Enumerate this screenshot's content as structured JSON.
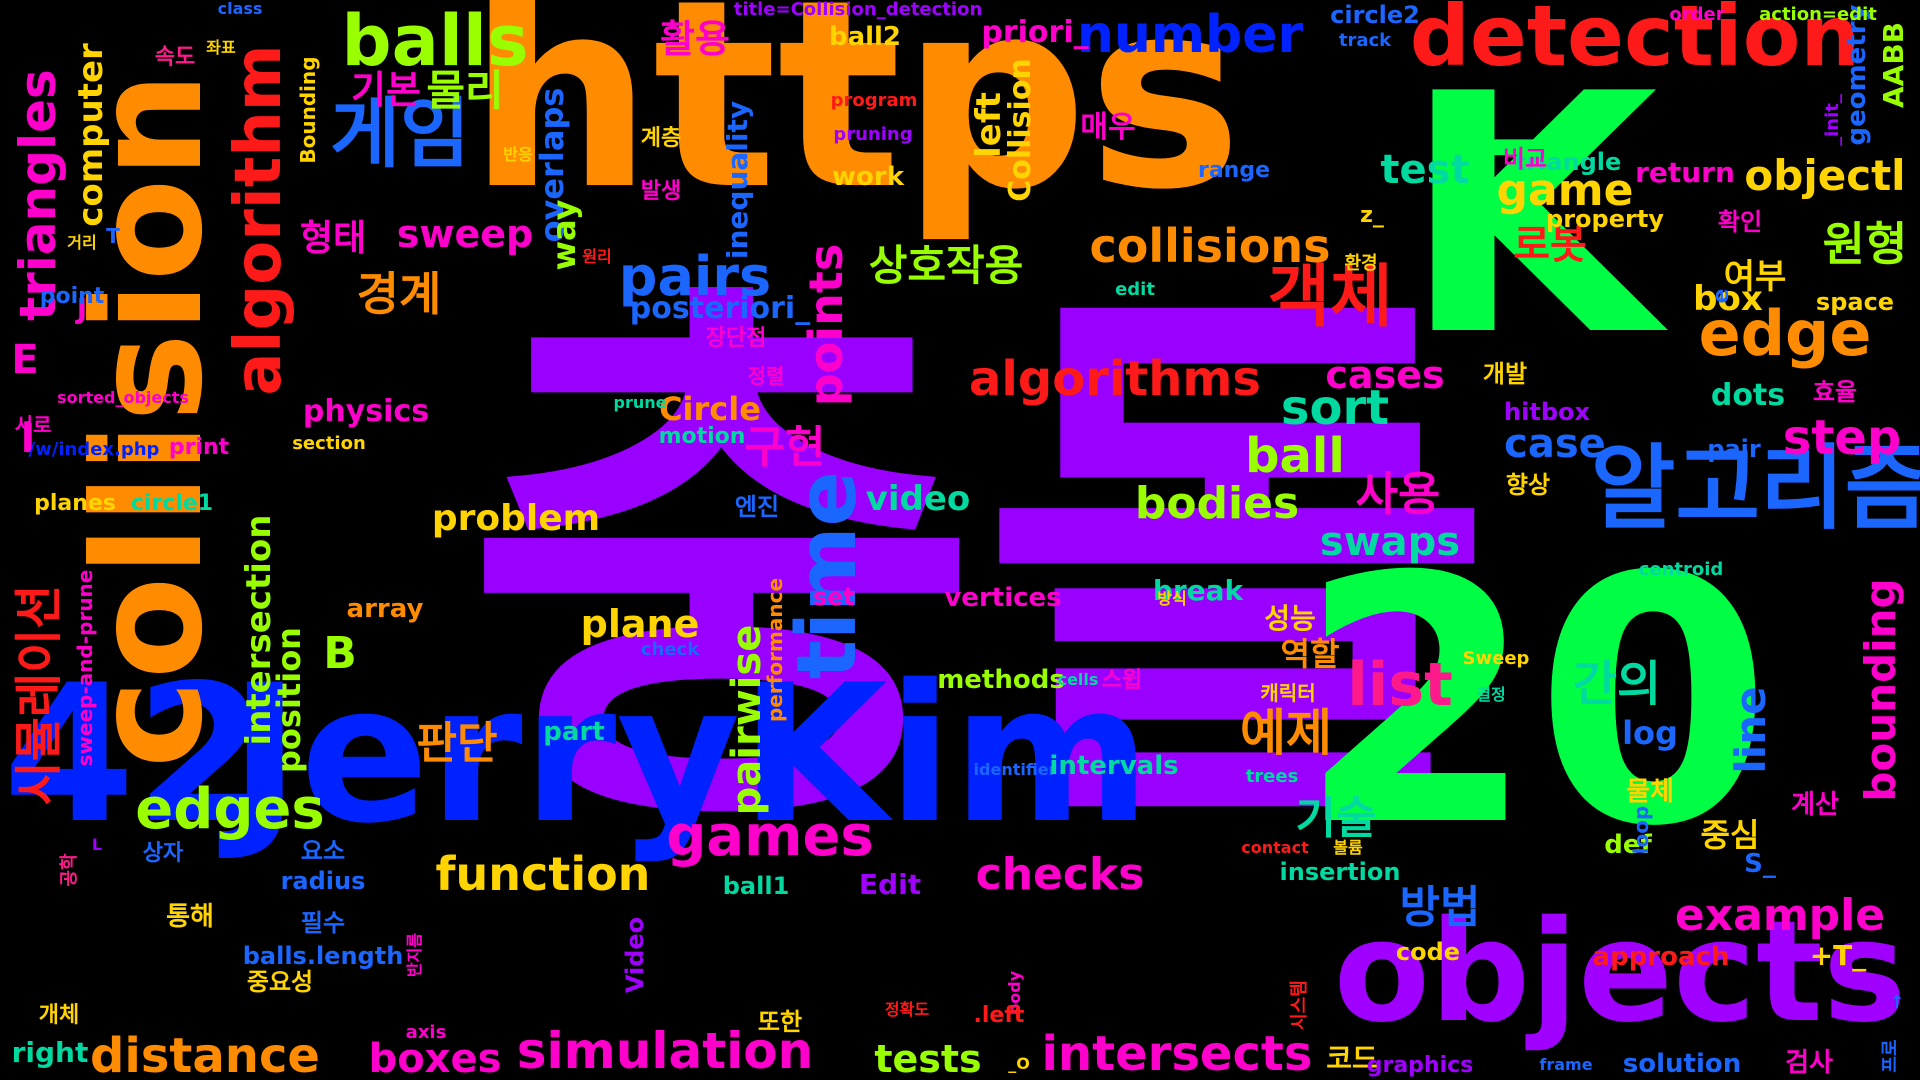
{
  "palette": {
    "background": "#000000",
    "purple": "#9900ff",
    "green": "#00ff44",
    "orange": "#ff8c00",
    "blue": "#0022ff",
    "red": "#ff1a1a",
    "magenta": "#ff00cc",
    "yellow": "#ffd400",
    "lime": "#99ff00",
    "cyan": "#00e0d0",
    "azure": "#1a66ff",
    "pink": "#ff1a8c",
    "violet": "#a000ff",
    "teal": "#00d9a0"
  },
  "words": [
    {
      "text": "충돌",
      "color": "purple",
      "weight": 100
    },
    {
      "text": "https",
      "color": "orange",
      "weight": 80
    },
    {
      "text": "K",
      "color": "green",
      "weight": 90
    },
    {
      "text": "_",
      "color": "green",
      "weight": 40
    },
    {
      "text": "20",
      "color": "green",
      "weight": 85
    },
    {
      "text": "42",
      "color": "blue",
      "weight": 60
    },
    {
      "text": "JerryKim",
      "color": "blue",
      "weight": 75
    },
    {
      "text": "collision",
      "color": "orange",
      "weight": 55
    },
    {
      "text": "objects",
      "color": "violet",
      "weight": 50
    },
    {
      "text": "detection",
      "color": "red",
      "weight": 30
    },
    {
      "text": "알고리즘",
      "color": "azure",
      "weight": 28
    },
    {
      "text": "algorithm",
      "color": "red",
      "weight": 20
    },
    {
      "text": "balls",
      "color": "lime",
      "weight": 18
    },
    {
      "text": "게임",
      "color": "azure",
      "weight": 18
    },
    {
      "text": "time",
      "color": "azure",
      "weight": 22
    },
    {
      "text": "pairs",
      "color": "azure",
      "weight": 15
    },
    {
      "text": "edge",
      "color": "orange",
      "weight": 17
    },
    {
      "text": "객체",
      "color": "red",
      "weight": 15
    },
    {
      "text": "원형",
      "color": "lime",
      "weight": 12
    },
    {
      "text": "objectl",
      "color": "yellow",
      "weight": 11
    },
    {
      "text": "triangles",
      "color": "magenta",
      "weight": 13
    },
    {
      "text": "algorithms",
      "color": "red",
      "weight": 14
    },
    {
      "text": "collisions",
      "color": "orange",
      "weight": 13
    },
    {
      "text": "number",
      "color": "blue",
      "weight": 12
    },
    {
      "text": "game",
      "color": "yellow",
      "weight": 12
    },
    {
      "text": "test",
      "color": "teal",
      "weight": 10
    },
    {
      "text": "games",
      "color": "magenta",
      "weight": 14
    },
    {
      "text": "edges",
      "color": "lime",
      "weight": 14
    },
    {
      "text": "function",
      "color": "yellow",
      "weight": 13
    },
    {
      "text": "simulation",
      "color": "magenta",
      "weight": 14
    },
    {
      "text": "distance",
      "color": "orange",
      "weight": 13
    },
    {
      "text": "intersects",
      "color": "magenta",
      "weight": 14
    },
    {
      "text": "checks",
      "color": "magenta",
      "weight": 12
    },
    {
      "text": "example",
      "color": "magenta",
      "weight": 12
    },
    {
      "text": "boxes",
      "color": "magenta",
      "weight": 11
    },
    {
      "text": "tests",
      "color": "lime",
      "weight": 10
    },
    {
      "text": "list",
      "color": "pink",
      "weight": 14
    },
    {
      "text": "step",
      "color": "magenta",
      "weight": 12
    },
    {
      "text": "sort",
      "color": "teal",
      "weight": 12
    },
    {
      "text": "ball",
      "color": "lime",
      "weight": 12
    },
    {
      "text": "bodies",
      "color": "lime",
      "weight": 11
    },
    {
      "text": "swaps",
      "color": "teal",
      "weight": 10
    },
    {
      "text": "case",
      "color": "azure",
      "weight": 10
    },
    {
      "text": "cases",
      "color": "magenta",
      "weight": 10
    },
    {
      "text": "points",
      "color": "magenta",
      "weight": 11
    },
    {
      "text": "pairwise",
      "color": "lime",
      "weight": 11
    },
    {
      "text": "bounding",
      "color": "magenta",
      "weight": 11
    },
    {
      "text": "line",
      "color": "azure",
      "weight": 11
    },
    {
      "text": "시뮬레이션",
      "color": "red",
      "weight": 13
    },
    {
      "text": "computer",
      "color": "yellow",
      "weight": 9
    },
    {
      "text": "intersection",
      "color": "lime",
      "weight": 9
    },
    {
      "text": "position",
      "color": "lime",
      "weight": 9
    },
    {
      "text": "plane",
      "color": "yellow",
      "weight": 10
    },
    {
      "text": "problem",
      "color": "yellow",
      "weight": 10
    },
    {
      "text": "video",
      "color": "teal",
      "weight": 9
    },
    {
      "text": "물리",
      "color": "lime",
      "weight": 10
    },
    {
      "text": "형태",
      "color": "magenta",
      "weight": 8
    },
    {
      "text": "경계",
      "color": "orange",
      "weight": 10
    },
    {
      "text": "sweep",
      "color": "magenta",
      "weight": 9
    },
    {
      "text": "활용",
      "color": "magenta",
      "weight": 8
    },
    {
      "text": "기본",
      "color": "magenta",
      "weight": 8
    },
    {
      "text": "상호작용",
      "color": "lime",
      "weight": 10
    },
    {
      "text": "구현",
      "color": "magenta",
      "weight": 10
    },
    {
      "text": "사용",
      "color": "magenta",
      "weight": 10
    },
    {
      "text": "예제",
      "color": "orange",
      "weight": 11
    },
    {
      "text": "간의",
      "color": "teal",
      "weight": 11
    },
    {
      "text": "기술",
      "color": "teal",
      "weight": 10
    },
    {
      "text": "방법",
      "color": "azure",
      "weight": 10
    },
    {
      "text": "판단",
      "color": "orange",
      "weight": 10
    },
    {
      "text": "로봇",
      "color": "red",
      "weight": 9
    },
    {
      "text": "여부",
      "color": "yellow",
      "weight": 8
    },
    {
      "text": "매우",
      "color": "magenta",
      "weight": 7
    },
    {
      "text": "overlaps",
      "color": "azure",
      "weight": 8
    },
    {
      "text": "way",
      "color": "lime",
      "weight": 7
    },
    {
      "text": "left",
      "color": "yellow",
      "weight": 7
    },
    {
      "text": "Collision",
      "color": "yellow",
      "weight": 7
    },
    {
      "text": "posteriori_",
      "color": "azure",
      "weight": 7
    },
    {
      "text": "priori_",
      "color": "magenta",
      "weight": 7
    },
    {
      "text": "physics",
      "color": "magenta",
      "weight": 7
    },
    {
      "text": "Circle",
      "color": "orange",
      "weight": 7
    },
    {
      "text": "motion",
      "color": "teal",
      "weight": 6
    },
    {
      "text": "work",
      "color": "yellow",
      "weight": 6
    },
    {
      "text": "B",
      "color": "lime",
      "weight": 10
    },
    {
      "text": "E",
      "color": "magenta",
      "weight": 10
    },
    {
      "text": "J",
      "color": "magenta",
      "weight": 8
    },
    {
      "text": "I",
      "color": "magenta",
      "weight": 8
    },
    {
      "text": "box",
      "color": "yellow",
      "weight": 7
    },
    {
      "text": "space",
      "color": "yellow",
      "weight": 6
    },
    {
      "text": "dots",
      "color": "teal",
      "weight": 6
    },
    {
      "text": "pair",
      "color": "azure",
      "weight": 5
    },
    {
      "text": "hitbox",
      "color": "violet",
      "weight": 5
    },
    {
      "text": "개발",
      "color": "yellow",
      "weight": 5
    },
    {
      "text": "효율",
      "color": "magenta",
      "weight": 5
    },
    {
      "text": "향상",
      "color": "yellow",
      "weight": 5
    },
    {
      "text": "triangle",
      "color": "teal",
      "weight": 5
    },
    {
      "text": "return",
      "color": "magenta",
      "weight": 6
    },
    {
      "text": "비교",
      "color": "magenta",
      "weight": 5
    },
    {
      "text": "확인",
      "color": "magenta",
      "weight": 5
    },
    {
      "text": "property",
      "color": "yellow",
      "weight": 5
    },
    {
      "text": "geometry",
      "color": "azure",
      "weight": 6
    },
    {
      "text": "AABB",
      "color": "lime",
      "weight": 6
    },
    {
      "text": "order",
      "color": "magenta",
      "weight": 4
    },
    {
      "text": "action=edit",
      "color": "lime",
      "weight": 4
    },
    {
      "text": "circle2",
      "color": "azure",
      "weight": 5
    },
    {
      "text": "track",
      "color": "azure",
      "weight": 4
    },
    {
      "text": "ball2",
      "color": "yellow",
      "weight": 5
    },
    {
      "text": "title=Collision_detection",
      "color": "violet",
      "weight": 4
    },
    {
      "text": "class",
      "color": "azure",
      "weight": 4
    },
    {
      "text": "속도",
      "color": "pink",
      "weight": 5
    },
    {
      "text": "좌표",
      "color": "yellow",
      "weight": 4
    },
    {
      "text": "반응",
      "color": "yellow",
      "weight": 4
    },
    {
      "text": "거리",
      "color": "yellow",
      "weight": 4
    },
    {
      "text": "T",
      "color": "azure",
      "weight": 5
    },
    {
      "text": "point",
      "color": "azure",
      "weight": 5
    },
    {
      "text": "sorted_objects",
      "color": "magenta",
      "weight": 4
    },
    {
      "text": "서로",
      "color": "magenta",
      "weight": 4
    },
    {
      "text": "/w/index.php",
      "color": "blue",
      "weight": 4
    },
    {
      "text": "print",
      "color": "magenta",
      "weight": 5
    },
    {
      "text": "section",
      "color": "yellow",
      "weight": 4
    },
    {
      "text": "planes",
      "color": "yellow",
      "weight": 5
    },
    {
      "text": "circle1",
      "color": "teal",
      "weight": 5
    },
    {
      "text": "prune",
      "color": "teal",
      "weight": 4
    },
    {
      "text": "장단점",
      "color": "magenta",
      "weight": 4
    },
    {
      "text": "정렬",
      "color": "magenta",
      "weight": 4
    },
    {
      "text": "program",
      "color": "red",
      "weight": 4
    },
    {
      "text": "pruning",
      "color": "violet",
      "weight": 4
    },
    {
      "text": "inequality",
      "color": "azure",
      "weight": 5
    },
    {
      "text": "계층",
      "color": "yellow",
      "weight": 4
    },
    {
      "text": "발생",
      "color": "magenta",
      "weight": 5
    },
    {
      "text": "원리",
      "color": "red",
      "weight": 4
    },
    {
      "text": "range",
      "color": "azure",
      "weight": 5
    },
    {
      "text": "edit",
      "color": "teal",
      "weight": 4
    },
    {
      "text": "환경",
      "color": "yellow",
      "weight": 4
    },
    {
      "text": "z_",
      "color": "yellow",
      "weight": 4
    },
    {
      "text": "_init_",
      "color": "violet",
      "weight": 4
    },
    {
      "text": "centroid",
      "color": "teal",
      "weight": 4
    },
    {
      "text": "Sweep",
      "color": "yellow",
      "weight": 4
    },
    {
      "text": "결정",
      "color": "teal",
      "weight": 4
    },
    {
      "text": "엔진",
      "color": "azure",
      "weight": 5
    },
    {
      "text": "set",
      "color": "magenta",
      "weight": 6
    },
    {
      "text": "vertices",
      "color": "magenta",
      "weight": 6
    },
    {
      "text": "break",
      "color": "teal",
      "weight": 6
    },
    {
      "text": "방식",
      "color": "yellow",
      "weight": 4
    },
    {
      "text": "성능",
      "color": "yellow",
      "weight": 6
    },
    {
      "text": "역할",
      "color": "orange",
      "weight": 7
    },
    {
      "text": "캐릭터",
      "color": "yellow",
      "weight": 5
    },
    {
      "text": "methods",
      "color": "lime",
      "weight": 6
    },
    {
      "text": "cells",
      "color": "teal",
      "weight": 4
    },
    {
      "text": "스윕",
      "color": "magenta",
      "weight": 5
    },
    {
      "text": "performance",
      "color": "orange",
      "weight": 4
    },
    {
      "text": "check",
      "color": "azure",
      "weight": 4
    },
    {
      "text": "array",
      "color": "orange",
      "weight": 6
    },
    {
      "text": "sweep-and-prune",
      "color": "magenta",
      "weight": 5
    },
    {
      "text": "Bounding",
      "color": "yellow",
      "weight": 5
    },
    {
      "text": "identifier",
      "color": "azure",
      "weight": 4
    },
    {
      "text": "intervals",
      "color": "teal",
      "weight": 6
    },
    {
      "text": "trees",
      "color": "teal",
      "weight": 4
    },
    {
      "text": "part",
      "color": "teal",
      "weight": 6
    },
    {
      "text": "log",
      "color": "azure",
      "weight": 7
    },
    {
      "text": "물체",
      "color": "yellow",
      "weight": 5
    },
    {
      "text": "계산",
      "color": "magenta",
      "weight": 5
    },
    {
      "text": "def",
      "color": "lime",
      "weight": 7
    },
    {
      "text": "중심",
      "color": "yellow",
      "weight": 5
    },
    {
      "text": "S_",
      "color": "azure",
      "weight": 5
    },
    {
      "text": "loop",
      "color": "azure",
      "weight": 4
    },
    {
      "text": "contact",
      "color": "red",
      "weight": 4
    },
    {
      "text": "볼륨",
      "color": "yellow",
      "weight": 5
    },
    {
      "text": "insertion",
      "color": "teal",
      "weight": 6
    },
    {
      "text": "ball1",
      "color": "teal",
      "weight": 6
    },
    {
      "text": "Edit",
      "color": "violet",
      "weight": 4
    },
    {
      "text": "L",
      "color": "violet",
      "weight": 4
    },
    {
      "text": "공학",
      "color": "pink",
      "weight": 5
    },
    {
      "text": "상자",
      "color": "azure",
      "weight": 5
    },
    {
      "text": "요소",
      "color": "azure",
      "weight": 5
    },
    {
      "text": "radius",
      "color": "azure",
      "weight": 6
    },
    {
      "text": "통해",
      "color": "yellow",
      "weight": 5
    },
    {
      "text": "필수",
      "color": "azure",
      "weight": 5
    },
    {
      "text": "balls.length",
      "color": "azure",
      "weight": 4
    },
    {
      "text": "반지름",
      "color": "magenta",
      "weight": 5
    },
    {
      "text": "Video",
      "color": "violet",
      "weight": 5
    },
    {
      "text": "중요성",
      "color": "yellow",
      "weight": 5
    },
    {
      "text": "code",
      "color": "yellow",
      "weight": 6
    },
    {
      "text": "approach",
      "color": "red",
      "weight": 6
    },
    {
      "text": "+T_",
      "color": "yellow",
      "weight": 4
    },
    {
      "text": "시스템",
      "color": "red",
      "weight": 4
    },
    {
      "text": "정확도",
      "color": "red",
      "weight": 5
    },
    {
      "text": "또한",
      "color": "yellow",
      "weight": 4
    },
    {
      "text": "body",
      "color": "magenta",
      "weight": 5
    },
    {
      "text": "개체",
      "color": "yellow",
      "weight": 6
    },
    {
      "text": "right",
      "color": "teal",
      "weight": 4
    },
    {
      "text": "axis",
      "color": "magenta",
      "weight": 5
    },
    {
      "text": ".left",
      "color": "red",
      "weight": 4
    },
    {
      "text": "_O",
      "color": "yellow",
      "weight": 6
    },
    {
      "text": "코드",
      "color": "yellow",
      "weight": 5
    },
    {
      "text": "graphics",
      "color": "violet",
      "weight": 4
    },
    {
      "text": "frame",
      "color": "azure",
      "weight": 6
    },
    {
      "text": "solution",
      "color": "azure",
      "weight": 6
    },
    {
      "text": "검사",
      "color": "magenta",
      "weight": 4
    },
    {
      "text": "↑",
      "color": "azure",
      "weight": 4
    },
    {
      "text": "프로",
      "color": "azure",
      "weight": 4
    },
    {
      "text": "e",
      "color": "azure",
      "weight": 5
    }
  ]
}
